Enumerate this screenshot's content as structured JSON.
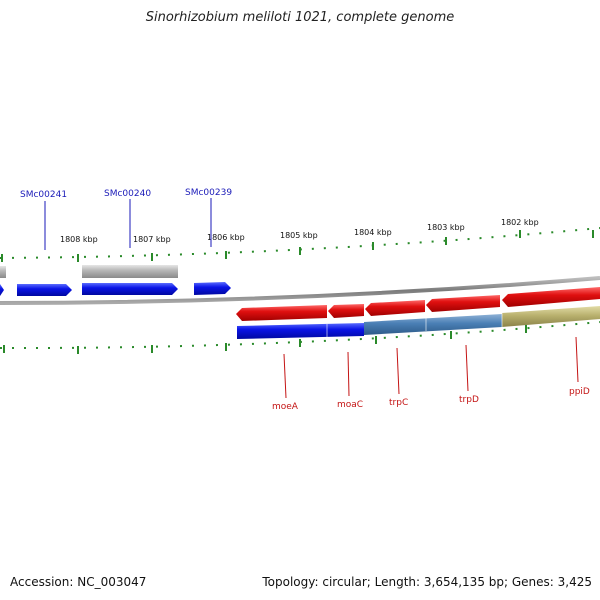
{
  "title": "Sinorhizobium meliloti 1021, complete genome",
  "footer": {
    "accession": "Accession: NC_003047",
    "summary": "Topology: circular; Length: 3,654,135 bp; Genes: 3,425"
  },
  "colors": {
    "forward_gene": "#0a14e6",
    "reverse_gene": "#e01010",
    "pseudo_gene": "#b8b8b8",
    "backbone": "#888888",
    "tick": "#2a8a2a",
    "steelblue_segment": "#4a7fb5",
    "khaki_segment": "#b9b16e",
    "label_top": "#1a1ab8",
    "label_bottom": "#c41414"
  },
  "kbp_labels": [
    "1808 kbp",
    "1807 kbp",
    "1806 kbp",
    "1805 kbp",
    "1804 kbp",
    "1803 kbp",
    "1802 kbp"
  ],
  "top_genes": [
    "SMc00241",
    "SMc00240",
    "SMc00239"
  ],
  "bottom_genes": [
    "moeA",
    "moaC",
    "trpC",
    "trpD",
    "ppiD"
  ]
}
